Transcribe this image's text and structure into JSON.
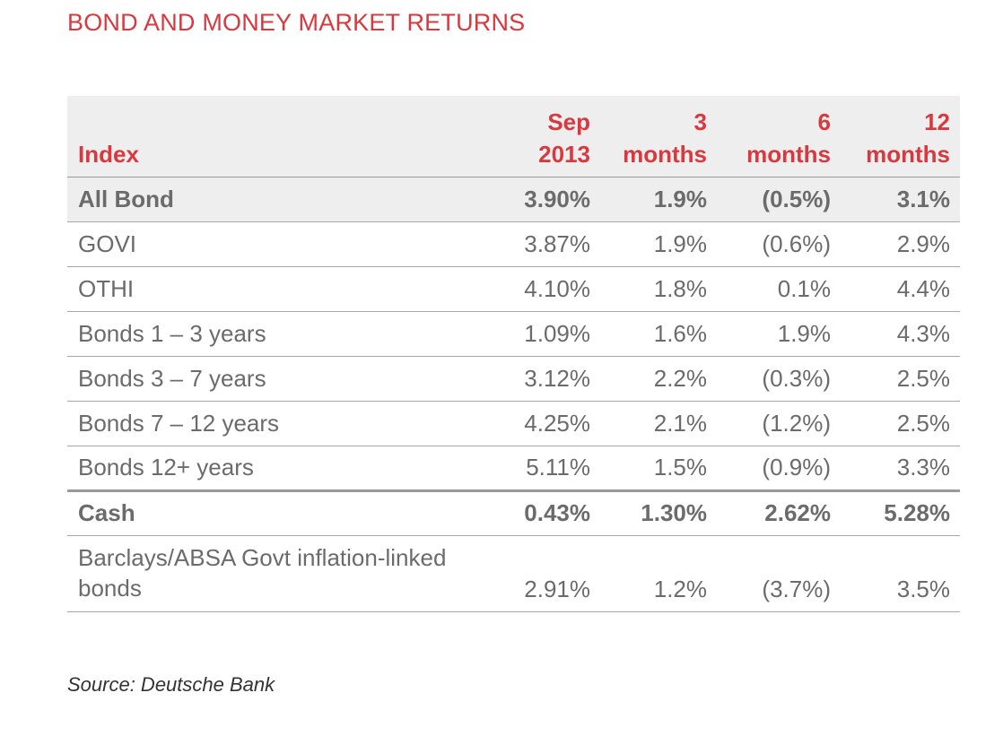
{
  "title": "BOND AND MONEY MARKET RETURNS",
  "table": {
    "headers": [
      {
        "line1": "",
        "line2": "Index"
      },
      {
        "line1": "Sep",
        "line2": "2013"
      },
      {
        "line1": "3",
        "line2": "months"
      },
      {
        "line1": "6",
        "line2": "months"
      },
      {
        "line1": "12",
        "line2": "months"
      }
    ],
    "rows": [
      {
        "index": "All Bond",
        "sep2013": "3.90%",
        "m3": "1.9%",
        "m6": "(0.5%)",
        "m12": "3.1%"
      },
      {
        "index": "GOVI",
        "sep2013": "3.87%",
        "m3": "1.9%",
        "m6": "(0.6%)",
        "m12": "2.9%"
      },
      {
        "index": "OTHI",
        "sep2013": "4.10%",
        "m3": "1.8%",
        "m6": "0.1%",
        "m12": "4.4%"
      },
      {
        "index": "Bonds 1 – 3 years",
        "sep2013": "1.09%",
        "m3": "1.6%",
        "m6": "1.9%",
        "m12": "4.3%"
      },
      {
        "index": "Bonds 3 – 7 years",
        "sep2013": "3.12%",
        "m3": "2.2%",
        "m6": "(0.3%)",
        "m12": "2.5%"
      },
      {
        "index": "Bonds 7 – 12 years",
        "sep2013": "4.25%",
        "m3": "2.1%",
        "m6": "(1.2%)",
        "m12": "2.5%"
      },
      {
        "index": "Bonds 12+ years",
        "sep2013": "5.11%",
        "m3": "1.5%",
        "m6": "(0.9%)",
        "m12": "3.3%"
      },
      {
        "index": "Cash",
        "sep2013": "0.43%",
        "m3": "1.30%",
        "m6": "2.62%",
        "m12": "5.28%"
      },
      {
        "index": "Barclays/ABSA Govt inflation-linked bonds",
        "sep2013": "2.91%",
        "m3": "1.2%",
        "m6": "(3.7%)",
        "m12": "3.5%"
      }
    ]
  },
  "source": "Source: Deutsche Bank",
  "colors": {
    "accent": "#d9383f",
    "header_bg": "#eeeeee",
    "text": "#6b6b6b"
  }
}
